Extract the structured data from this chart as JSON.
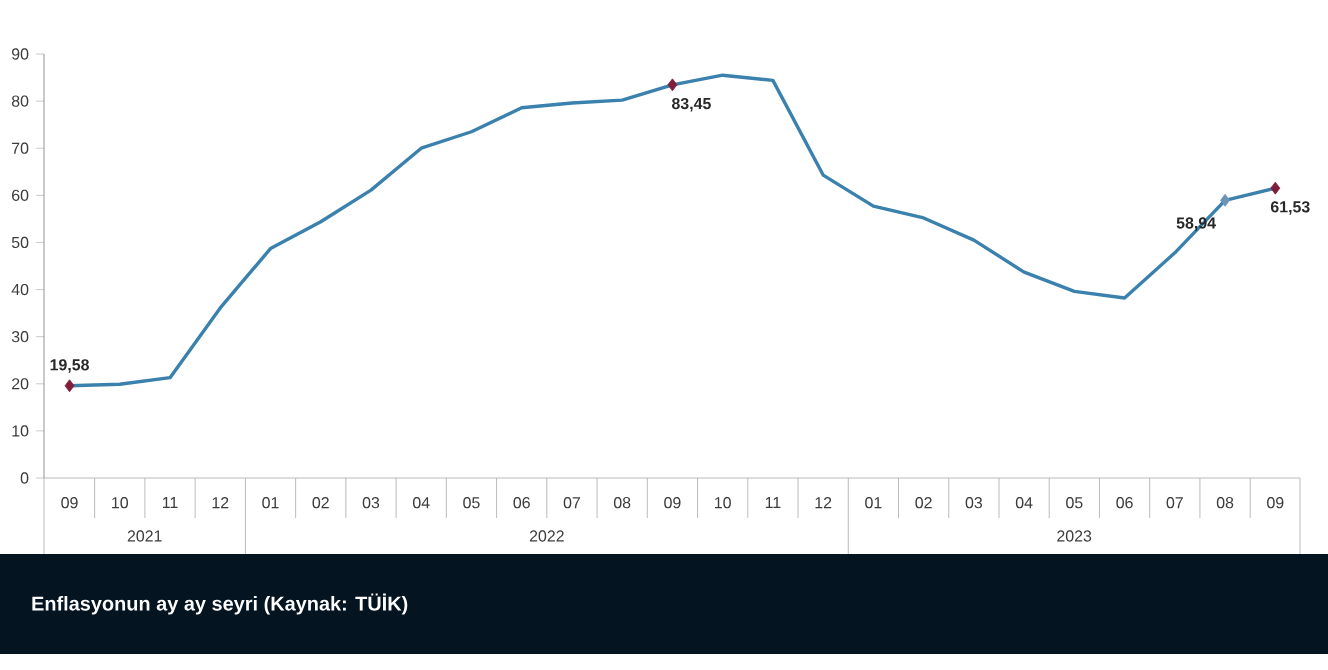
{
  "chart_data": {
    "type": "line",
    "title": "Enflasyonun ay ay seyri (Kaynak: TÜİK)",
    "x": [
      "2021-09",
      "2021-10",
      "2021-11",
      "2021-12",
      "2022-01",
      "2022-02",
      "2022-03",
      "2022-04",
      "2022-05",
      "2022-06",
      "2022-07",
      "2022-08",
      "2022-09",
      "2022-10",
      "2022-11",
      "2022-12",
      "2023-01",
      "2023-02",
      "2023-03",
      "2023-04",
      "2023-05",
      "2023-06",
      "2023-07",
      "2023-08",
      "2023-09"
    ],
    "xlim": [
      "2021-08-16",
      "2023-09-16"
    ],
    "xticks": [
      {
        "value": "2021-09",
        "label": "09"
      },
      {
        "value": "2021-10",
        "label": "10"
      },
      {
        "value": "2021-11",
        "label": "11"
      },
      {
        "value": "2021-12",
        "label": "12"
      },
      {
        "value": "2022-01",
        "label": "01"
      },
      {
        "value": "2022-02",
        "label": "02"
      },
      {
        "value": "2022-03",
        "label": "03"
      },
      {
        "value": "2022-04",
        "label": "04"
      },
      {
        "value": "2022-05",
        "label": "05"
      },
      {
        "value": "2022-06",
        "label": "06"
      },
      {
        "value": "2022-07",
        "label": "07"
      },
      {
        "value": "2022-08",
        "label": "08"
      },
      {
        "value": "2022-09",
        "label": "09"
      },
      {
        "value": "2022-10",
        "label": "10"
      },
      {
        "value": "2022-11",
        "label": "11"
      },
      {
        "value": "2022-12",
        "label": "12"
      },
      {
        "value": "2023-01",
        "label": "01"
      },
      {
        "value": "2023-02",
        "label": "02"
      },
      {
        "value": "2023-03",
        "label": "03"
      },
      {
        "value": "2023-04",
        "label": "04"
      },
      {
        "value": "2023-05",
        "label": "05"
      },
      {
        "value": "2023-06",
        "label": "06"
      },
      {
        "value": "2023-07",
        "label": "07"
      },
      {
        "value": "2023-08",
        "label": "08"
      },
      {
        "value": "2023-09",
        "label": "09"
      }
    ],
    "annotations": [
      "2021",
      "2022",
      "2023"
    ],
    "ylim": [
      0,
      90
    ],
    "yticks": [
      0,
      10,
      20,
      30,
      40,
      50,
      60,
      70,
      80,
      90
    ],
    "line_style": "solid",
    "series": [
      {
        "color": "#3a81ad",
        "marker": "none",
        "values": [
          19.58,
          19.9,
          21.3,
          36.1,
          48.7,
          54.4,
          61.1,
          70.0,
          73.5,
          78.6,
          79.6,
          80.2,
          83.45,
          85.5,
          84.4,
          64.3,
          57.7,
          55.2,
          50.5,
          43.7,
          39.6,
          38.2,
          47.8,
          58.94,
          61.53
        ]
      },
      {
        "type": "scatter",
        "marker": "diamond",
        "x": [
          "2021-09",
          "2022-09",
          "2023-08",
          "2023-09"
        ],
        "values": [
          19.58,
          83.45,
          58.94,
          61.53
        ],
        "colors": [
          "#7f1d3a",
          "#7f1d3a",
          "#6a93b8",
          "#7f1d3a"
        ],
        "value_labels": [
          "19,58",
          "83,45",
          "58,94",
          "61,53"
        ]
      }
    ]
  }
}
